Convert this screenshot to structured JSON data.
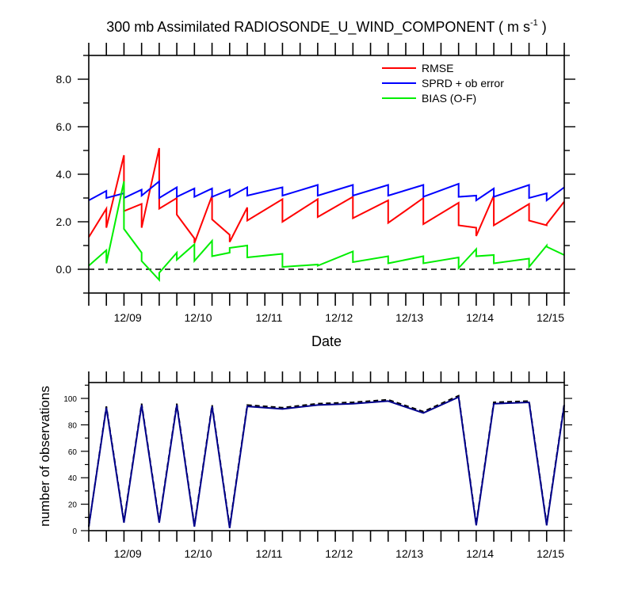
{
  "chart_data": [
    {
      "type": "line",
      "title_main": "300 mb Assimilated RADIOSONDE_U_WIND_COMPONENT ( m s",
      "title_sup": "-1",
      "title_end": " )",
      "xlabel": "Date",
      "ylabel": "",
      "xlim": [
        8.25,
        15.0
      ],
      "ylim": [
        -1.0,
        9.0
      ],
      "x_ticks": [
        9.0,
        10.0,
        11.0,
        12.0,
        13.0,
        14.0,
        15.0
      ],
      "x_tick_labels": [
        "12/09",
        "12/10",
        "12/11",
        "12/12",
        "12/13",
        "12/14",
        "12/15"
      ],
      "y_ticks": [
        0.0,
        2.0,
        4.0,
        6.0,
        8.0
      ],
      "y_tick_labels": [
        "0.0",
        "2.0",
        "4.0",
        "6.0",
        "8.0"
      ],
      "reference_line": {
        "y": 0.0,
        "style": "dashed"
      },
      "legend_position": "top-right",
      "series": [
        {
          "name": "RMSE",
          "color": "#ff0000",
          "x": [
            8.25,
            8.5,
            8.5,
            8.75,
            8.75,
            9.0,
            9.0,
            9.25,
            9.25,
            9.5,
            9.5,
            9.75,
            9.75,
            10.0,
            10.0,
            10.25,
            10.25,
            10.5,
            10.5,
            11.0,
            11.0,
            11.5,
            11.5,
            12.0,
            12.0,
            12.5,
            12.5,
            13.0,
            13.0,
            13.5,
            13.5,
            13.75,
            13.75,
            14.0,
            14.0,
            14.5,
            14.5,
            14.75,
            14.75,
            15.0
          ],
          "y": [
            1.35,
            2.55,
            1.75,
            4.8,
            2.45,
            2.75,
            1.75,
            5.1,
            2.55,
            3.0,
            2.3,
            1.3,
            1.1,
            3.1,
            2.1,
            1.45,
            1.15,
            2.6,
            2.05,
            2.95,
            2.0,
            2.95,
            2.2,
            3.05,
            2.15,
            2.9,
            1.95,
            3.0,
            1.9,
            2.8,
            1.85,
            1.75,
            1.4,
            3.1,
            1.85,
            2.75,
            2.05,
            1.85,
            1.9,
            2.85
          ]
        },
        {
          "name": "SPRD + ob error",
          "color": "#0000ff",
          "x": [
            8.25,
            8.5,
            8.5,
            8.75,
            8.75,
            9.0,
            9.0,
            9.25,
            9.25,
            9.5,
            9.5,
            9.75,
            9.75,
            10.0,
            10.0,
            10.25,
            10.25,
            10.5,
            10.5,
            11.0,
            11.0,
            11.5,
            11.5,
            12.0,
            12.0,
            12.5,
            12.5,
            13.0,
            13.0,
            13.5,
            13.5,
            13.75,
            13.75,
            14.0,
            14.0,
            14.5,
            14.5,
            14.75,
            14.75,
            15.0
          ],
          "y": [
            2.9,
            3.3,
            3.0,
            3.2,
            3.0,
            3.35,
            3.1,
            3.7,
            3.0,
            3.45,
            3.05,
            3.4,
            3.05,
            3.4,
            3.05,
            3.35,
            3.05,
            3.45,
            3.1,
            3.45,
            3.1,
            3.55,
            3.1,
            3.55,
            3.1,
            3.55,
            3.1,
            3.55,
            3.05,
            3.6,
            3.05,
            3.1,
            2.9,
            3.4,
            3.05,
            3.55,
            3.0,
            3.2,
            2.9,
            3.45
          ]
        },
        {
          "name": "BIAS (O-F)",
          "color": "#00ee00",
          "x": [
            8.25,
            8.5,
            8.5,
            8.75,
            8.75,
            9.0,
            9.0,
            9.25,
            9.25,
            9.5,
            9.5,
            9.75,
            9.75,
            10.0,
            10.0,
            10.25,
            10.25,
            10.5,
            10.5,
            11.0,
            11.0,
            11.5,
            11.5,
            12.0,
            12.0,
            12.5,
            12.5,
            13.0,
            13.0,
            13.5,
            13.5,
            13.75,
            13.75,
            14.0,
            14.0,
            14.5,
            14.5,
            14.75,
            14.75,
            15.0
          ],
          "y": [
            0.15,
            0.8,
            0.25,
            3.7,
            1.7,
            0.7,
            0.35,
            -0.45,
            -0.15,
            0.7,
            0.4,
            1.05,
            0.35,
            1.2,
            0.55,
            0.7,
            0.9,
            1.0,
            0.5,
            0.65,
            0.1,
            0.2,
            0.15,
            0.75,
            0.3,
            0.55,
            0.25,
            0.55,
            0.25,
            0.5,
            0.05,
            0.85,
            0.55,
            0.6,
            0.25,
            0.45,
            0.1,
            1.0,
            0.95,
            0.6
          ]
        }
      ]
    },
    {
      "type": "line",
      "title": "",
      "xlabel": "",
      "ylabel": "number of observations",
      "xlim": [
        8.25,
        15.0
      ],
      "ylim": [
        0,
        112
      ],
      "x_ticks": [
        9.0,
        10.0,
        11.0,
        12.0,
        13.0,
        14.0,
        15.0
      ],
      "x_tick_labels": [
        "12/09",
        "12/10",
        "12/11",
        "12/12",
        "12/13",
        "12/14",
        "12/15"
      ],
      "y_ticks": [
        0,
        20,
        40,
        60,
        80,
        100
      ],
      "y_tick_labels": [
        "0",
        "20",
        "40",
        "60",
        "80",
        "100"
      ],
      "series": [
        {
          "style": "dashed",
          "color": "#000000",
          "x": [
            8.25,
            8.5,
            8.75,
            9.0,
            9.25,
            9.5,
            9.75,
            10.0,
            10.25,
            10.5,
            11.0,
            11.5,
            12.0,
            12.5,
            13.0,
            13.5,
            13.75,
            14.0,
            14.5,
            14.75,
            15.0
          ],
          "y": [
            3,
            94,
            7,
            96,
            7,
            96,
            4,
            95,
            3,
            95,
            93,
            96,
            97,
            99,
            90,
            102,
            5,
            97,
            98,
            5,
            96
          ]
        },
        {
          "style": "solid",
          "color": "#00008b",
          "x": [
            8.25,
            8.5,
            8.75,
            9.0,
            9.25,
            9.5,
            9.75,
            10.0,
            10.25,
            10.5,
            11.0,
            11.5,
            12.0,
            12.5,
            13.0,
            13.5,
            13.75,
            14.0,
            14.5,
            14.75,
            15.0
          ],
          "y": [
            3,
            93,
            6,
            95,
            6,
            95,
            3,
            94,
            2,
            94,
            92,
            95,
            96,
            98,
            89,
            101,
            4,
            96,
            97,
            4,
            95
          ]
        }
      ]
    }
  ]
}
